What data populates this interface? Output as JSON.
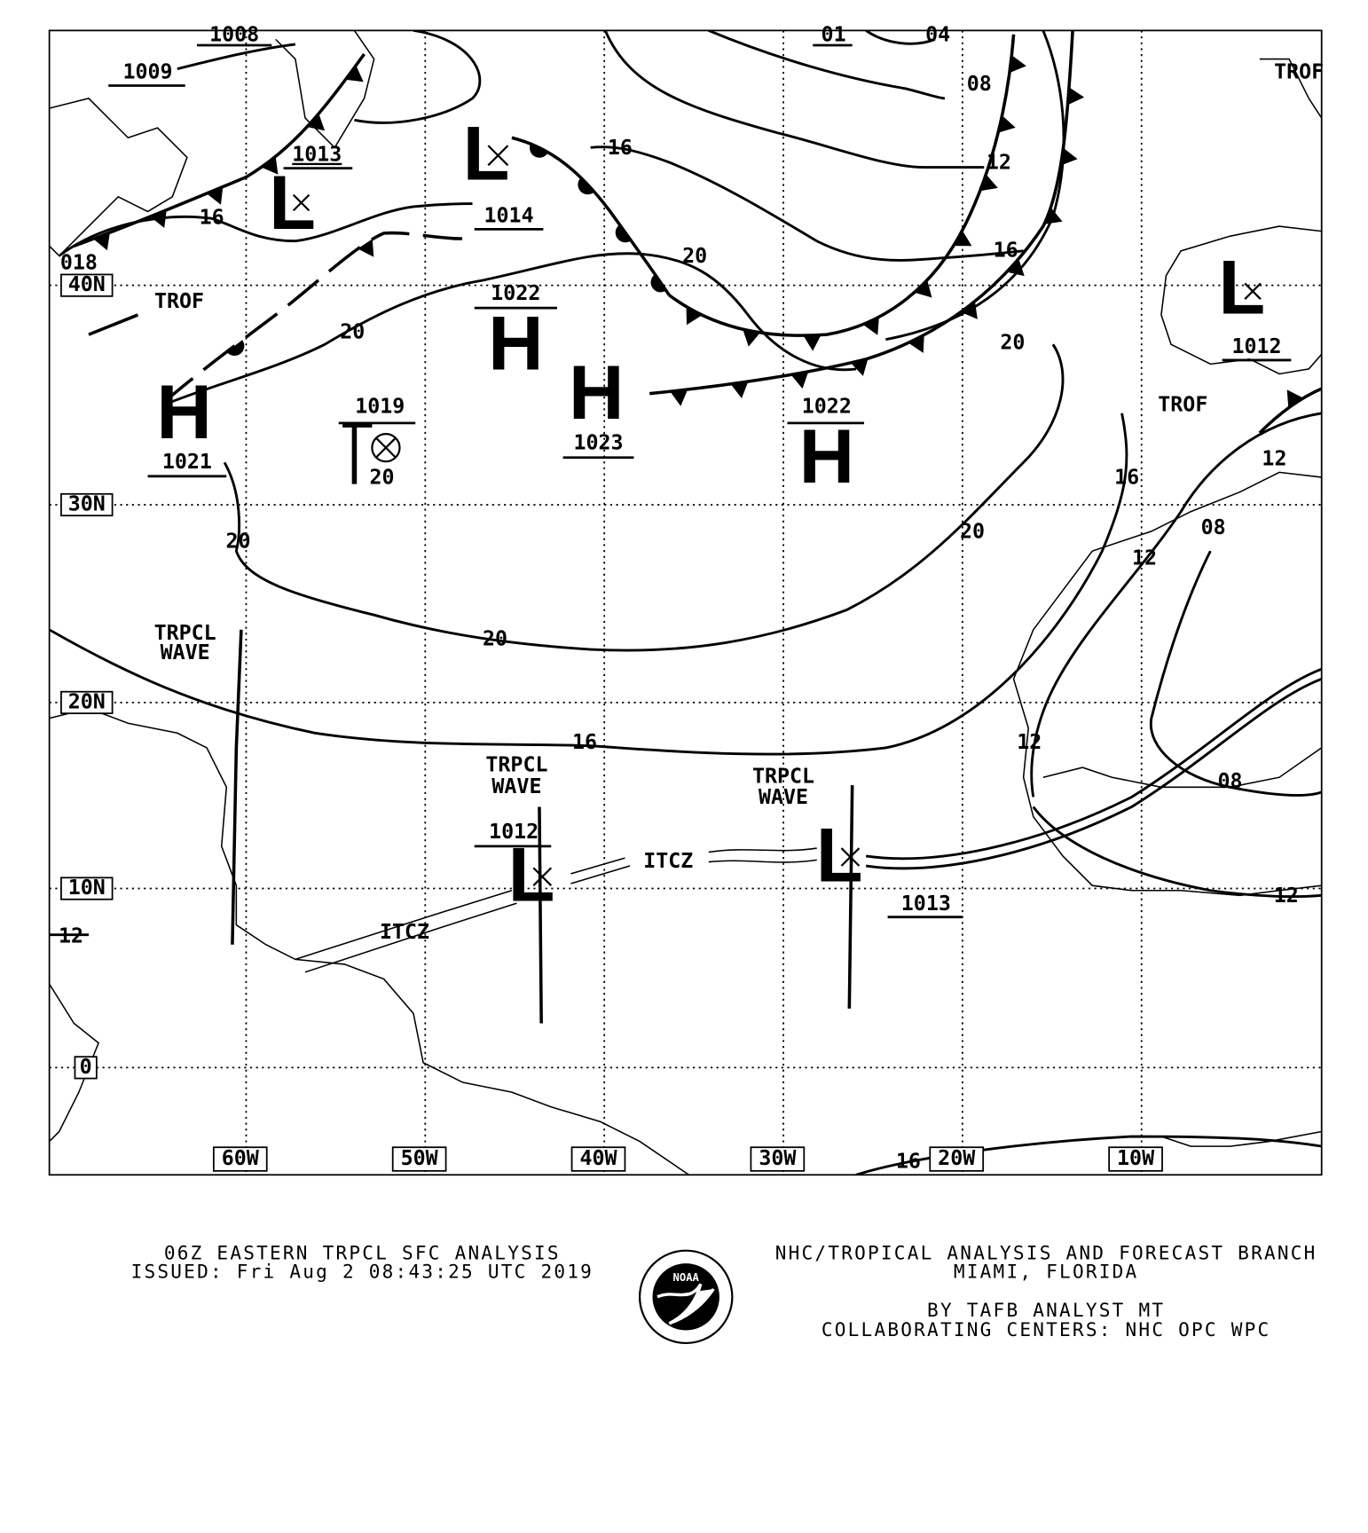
{
  "map": {
    "lat_labels": [
      "40N",
      "30N",
      "20N",
      "10N",
      "0"
    ],
    "lon_labels": [
      "60W",
      "50W",
      "40W",
      "30W",
      "20W",
      "10W"
    ],
    "pressure_centers": [
      {
        "type": "L",
        "value": "1013"
      },
      {
        "type": "L",
        "value": "1014"
      },
      {
        "type": "L",
        "value": "1012"
      },
      {
        "type": "H",
        "value": "1022"
      },
      {
        "type": "H",
        "value": "1023"
      },
      {
        "type": "H",
        "value": "1021"
      },
      {
        "type": "H",
        "value": "1022"
      },
      {
        "type": "L",
        "value": "1019"
      },
      {
        "type": "L",
        "value": "1012"
      },
      {
        "type": "L",
        "value": "1013"
      }
    ],
    "edge_pressure_labels": [
      "1008",
      "1009",
      "01",
      "04",
      "018"
    ],
    "isobar_labels": [
      "08",
      "12",
      "16",
      "16",
      "16",
      "20",
      "20",
      "20",
      "20",
      "20",
      "20",
      "20",
      "16",
      "12",
      "08",
      "12",
      "16",
      "12",
      "08",
      "12",
      "12",
      "16"
    ],
    "features": {
      "trof": [
        "TROF",
        "TROF",
        "TROF"
      ],
      "tropical_wave_line1": "TRPCL",
      "tropical_wave_line2": "WAVE",
      "itcz": "ITCZ"
    }
  },
  "footer": {
    "title": "06Z EASTERN TRPCL SFC ANALYSIS",
    "issued": "ISSUED: Fri Aug 2 08:43:25 UTC 2019",
    "agency": "NHC/TROPICAL ANALYSIS AND FORECAST BRANCH",
    "location": "MIAMI,  FLORIDA",
    "analyst": "BY TAFB ANALYST  MT",
    "centers": "COLLABORATING CENTERS: NHC OPC WPC",
    "logo_text": "NOAA"
  }
}
